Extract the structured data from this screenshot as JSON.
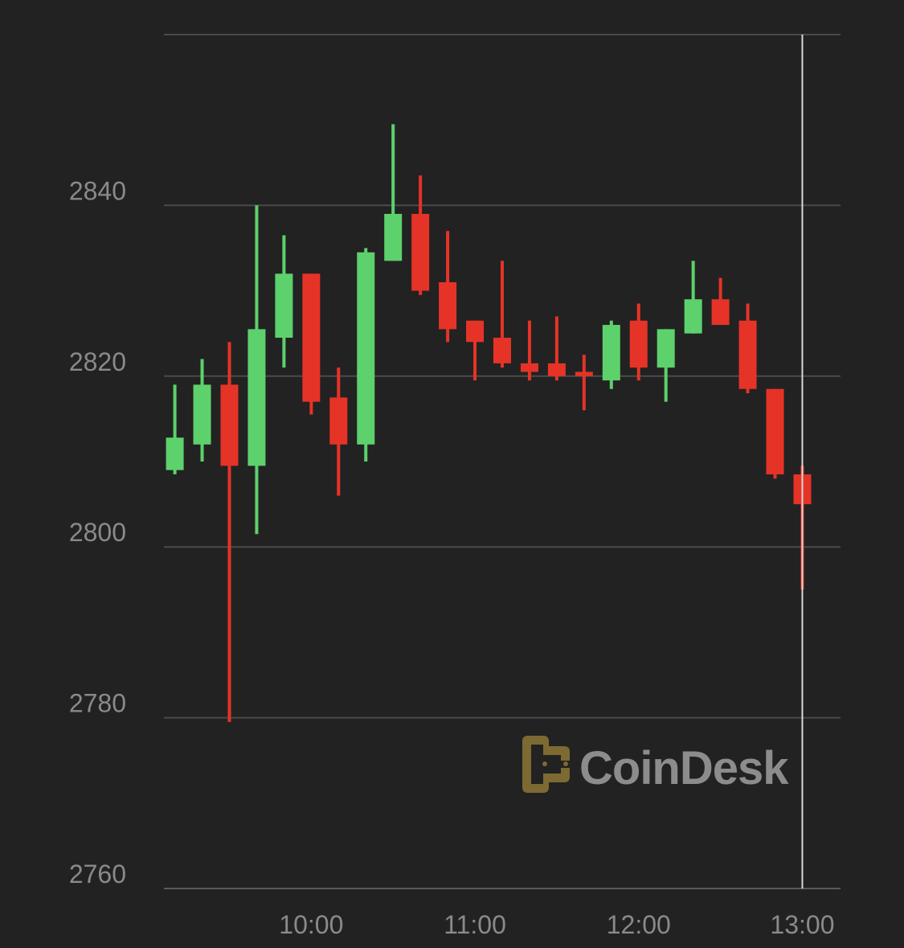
{
  "colors": {
    "background": "#222222",
    "up": "#5dd16c",
    "down": "#e63327",
    "grid": "#4a4a4a",
    "cursor": "#d8d8d8",
    "label": "#8a8a8a",
    "logo_mark": "#7d6a32",
    "logo_text": "#8c8c8c"
  },
  "watermark": {
    "text": "CoinDesk",
    "icon": "coindesk-logo-icon"
  },
  "chart_data": {
    "type": "candlestick",
    "title": "",
    "xlabel": "",
    "ylabel": "",
    "ylim": [
      2760,
      2860
    ],
    "y_ticks": [
      2760,
      2780,
      2800,
      2820,
      2840
    ],
    "x_ticks": [
      "10:00",
      "11:00",
      "12:00",
      "13:00"
    ],
    "x_range": [
      "09:06",
      "13:14"
    ],
    "grid": true,
    "cursor_at": "13:00",
    "candles": [
      {
        "time": "09:10",
        "open": 2809.0,
        "high": 2819.0,
        "low": 2808.5,
        "close": 2812.8
      },
      {
        "time": "09:20",
        "open": 2812.0,
        "high": 2822.0,
        "low": 2810.0,
        "close": 2819.0
      },
      {
        "time": "09:30",
        "open": 2819.0,
        "high": 2824.0,
        "low": 2779.5,
        "close": 2809.5
      },
      {
        "time": "09:40",
        "open": 2809.5,
        "high": 2840.0,
        "low": 2801.5,
        "close": 2825.5
      },
      {
        "time": "09:50",
        "open": 2824.5,
        "high": 2836.5,
        "low": 2821.0,
        "close": 2832.0
      },
      {
        "time": "10:00",
        "open": 2832.0,
        "high": 2832.0,
        "low": 2815.5,
        "close": 2817.0
      },
      {
        "time": "10:10",
        "open": 2817.5,
        "high": 2821.0,
        "low": 2806.0,
        "close": 2812.0
      },
      {
        "time": "10:20",
        "open": 2812.0,
        "high": 2835.0,
        "low": 2810.0,
        "close": 2834.5
      },
      {
        "time": "10:30",
        "open": 2833.5,
        "high": 2849.5,
        "low": 2833.5,
        "close": 2839.0
      },
      {
        "time": "10:40",
        "open": 2839.0,
        "high": 2843.5,
        "low": 2829.5,
        "close": 2830.0
      },
      {
        "time": "10:50",
        "open": 2831.0,
        "high": 2837.0,
        "low": 2824.0,
        "close": 2825.5
      },
      {
        "time": "11:00",
        "open": 2826.5,
        "high": 2826.5,
        "low": 2819.5,
        "close": 2824.0
      },
      {
        "time": "11:10",
        "open": 2824.5,
        "high": 2833.5,
        "low": 2821.0,
        "close": 2821.5
      },
      {
        "time": "11:20",
        "open": 2821.5,
        "high": 2826.5,
        "low": 2819.5,
        "close": 2820.5
      },
      {
        "time": "11:30",
        "open": 2821.5,
        "high": 2827.0,
        "low": 2819.5,
        "close": 2820.0
      },
      {
        "time": "11:40",
        "open": 2820.5,
        "high": 2822.5,
        "low": 2816.0,
        "close": 2820.0
      },
      {
        "time": "11:50",
        "open": 2819.5,
        "high": 2826.5,
        "low": 2818.5,
        "close": 2826.0
      },
      {
        "time": "12:00",
        "open": 2826.5,
        "high": 2828.5,
        "low": 2819.5,
        "close": 2821.0
      },
      {
        "time": "12:10",
        "open": 2821.0,
        "high": 2825.5,
        "low": 2817.0,
        "close": 2825.5
      },
      {
        "time": "12:20",
        "open": 2825.0,
        "high": 2833.5,
        "low": 2825.0,
        "close": 2829.0
      },
      {
        "time": "12:30",
        "open": 2829.0,
        "high": 2831.5,
        "low": 2826.0,
        "close": 2826.0
      },
      {
        "time": "12:40",
        "open": 2826.5,
        "high": 2828.5,
        "low": 2818.0,
        "close": 2818.5
      },
      {
        "time": "12:50",
        "open": 2818.5,
        "high": 2818.5,
        "low": 2808.0,
        "close": 2808.5
      },
      {
        "time": "13:00",
        "open": 2808.5,
        "high": 2809.5,
        "low": 2795.0,
        "close": 2805.0
      }
    ]
  }
}
